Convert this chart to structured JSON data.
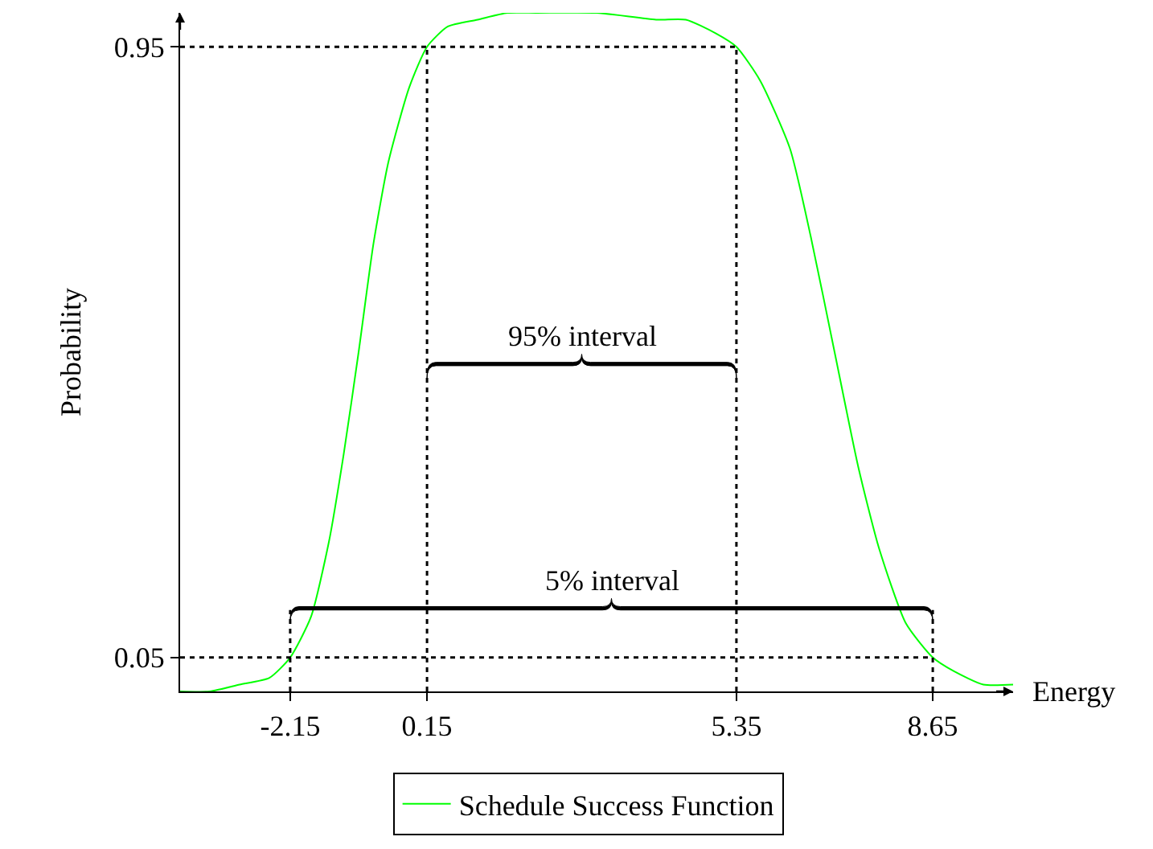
{
  "chart_data": {
    "type": "line",
    "xlabel": "Energy",
    "ylabel": "Probability",
    "x": [
      -4,
      -3.5,
      -3,
      -2.5,
      -2.15,
      -1.8,
      -1.5,
      -1.25,
      -1.0,
      -0.75,
      -0.5,
      -0.15,
      0.15,
      0.5,
      1.0,
      1.5,
      2.0,
      3.0,
      4.0,
      4.5,
      5.0,
      5.35,
      5.75,
      6.25,
      6.6,
      7.0,
      7.4,
      7.75,
      8.2,
      8.65,
      9.0,
      9.5,
      10
    ],
    "series": [
      {
        "name": "Schedule Success Function",
        "color": "#00ff00",
        "values": [
          0.0,
          0.0,
          0.01,
          0.02,
          0.05,
          0.11,
          0.22,
          0.35,
          0.5,
          0.66,
          0.78,
          0.89,
          0.95,
          0.98,
          0.99,
          1.0,
          1.0,
          1.0,
          0.99,
          0.99,
          0.97,
          0.95,
          0.9,
          0.8,
          0.67,
          0.5,
          0.33,
          0.21,
          0.1,
          0.05,
          0.03,
          0.01,
          0.01
        ]
      }
    ],
    "xlim": [
      -4,
      10
    ],
    "ylim": [
      0,
      1
    ],
    "xticks": [
      -2.15,
      0.15,
      5.35,
      8.65
    ],
    "yticks": [
      0.05,
      0.95
    ],
    "ref_lines": [
      {
        "axis": "y",
        "value": 0.95,
        "line_style": "dotted"
      },
      {
        "axis": "y",
        "value": 0.05,
        "line_style": "dotted"
      },
      {
        "axis": "x",
        "value": -2.15,
        "line_style": "dotted"
      },
      {
        "axis": "x",
        "value": 0.15,
        "line_style": "dotted"
      },
      {
        "axis": "x",
        "value": 5.35,
        "line_style": "dotted"
      },
      {
        "axis": "x",
        "value": 8.65,
        "line_style": "dotted"
      }
    ],
    "annotations": [
      "95% interval",
      "5% interval"
    ],
    "legend": "bottom",
    "marker": "none",
    "line_style": "solid"
  }
}
